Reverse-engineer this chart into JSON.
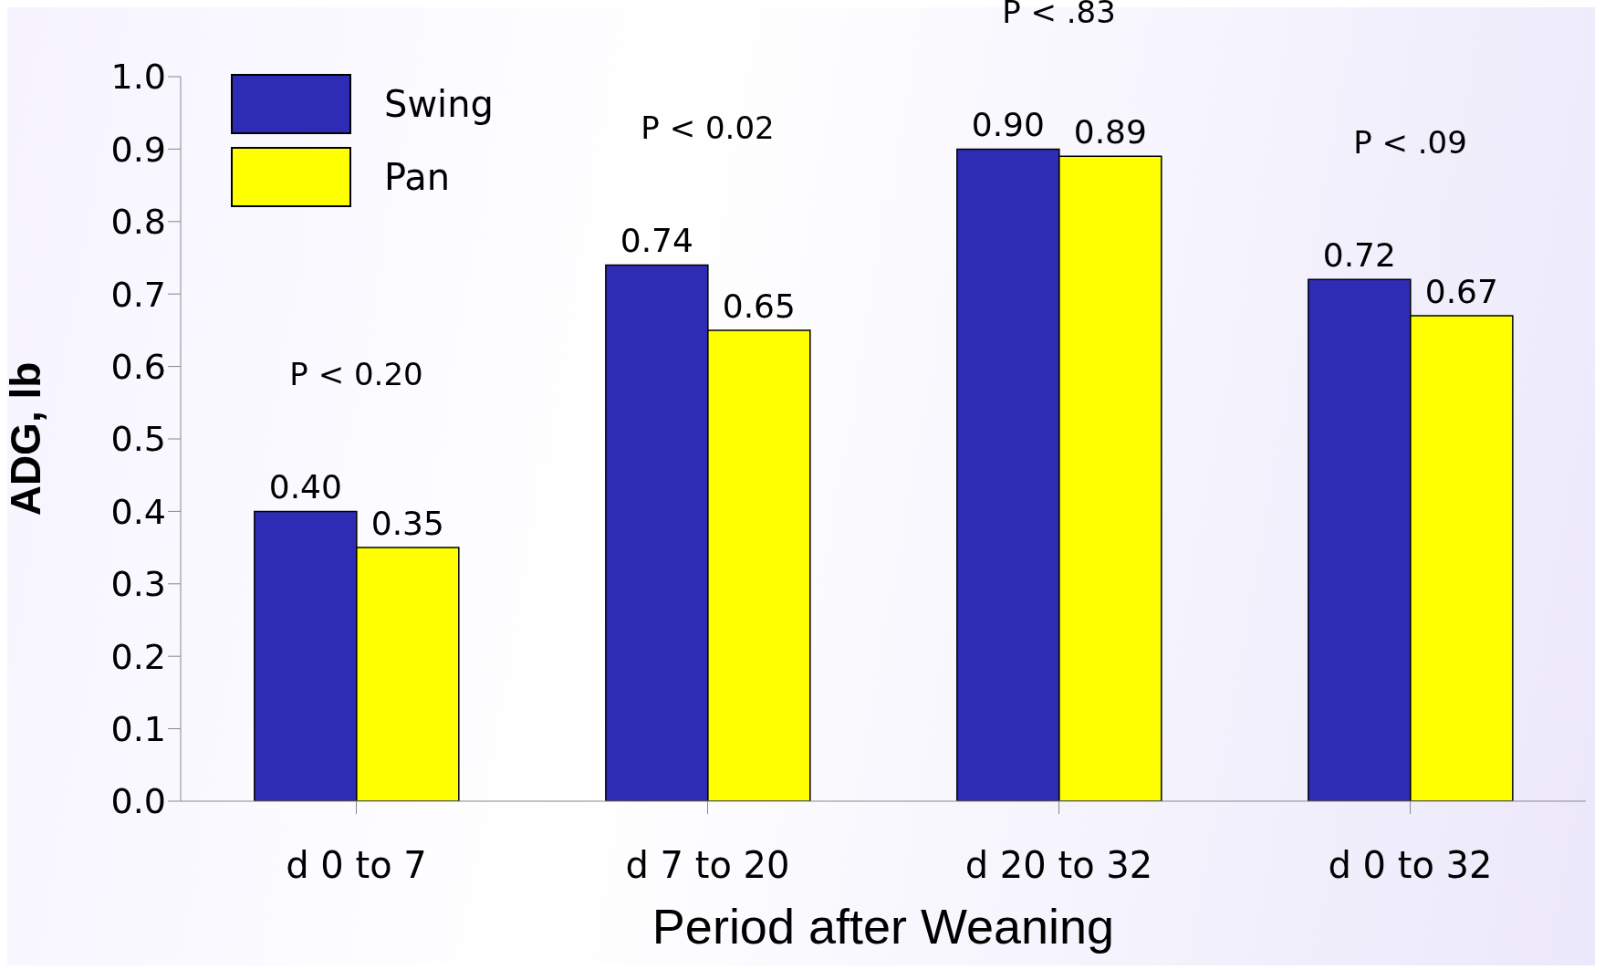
{
  "chart_data": {
    "type": "bar",
    "xlabel": "Period after Weaning",
    "ylabel": "ADG, lb",
    "categories": [
      "d 0 to 7",
      "d 7 to 20",
      "d 20 to 32",
      "d 0 to 32"
    ],
    "series": [
      {
        "name": "Swing",
        "color": "#2e2bb5",
        "values": [
          0.4,
          0.74,
          0.9,
          0.72
        ],
        "value_labels": [
          "0.40",
          "0.74",
          "0.90",
          "0.72"
        ]
      },
      {
        "name": "Pan",
        "color": "#ffff00",
        "values": [
          0.35,
          0.65,
          0.89,
          0.67
        ],
        "value_labels": [
          "0.35",
          "0.65",
          "0.89",
          "0.67"
        ]
      }
    ],
    "ylim": [
      0,
      1.0
    ],
    "yticks": [
      {
        "value": 0,
        "label": "0.0"
      },
      {
        "value": 0.1,
        "label": "0.1"
      },
      {
        "value": 0.2,
        "label": "0.2"
      },
      {
        "value": 0.3,
        "label": "0.3"
      },
      {
        "value": 0.4,
        "label": "0.4"
      },
      {
        "value": 0.5,
        "label": "0.5"
      },
      {
        "value": 0.6,
        "label": "0.6"
      },
      {
        "value": 0.7,
        "label": "0.7"
      },
      {
        "value": 0.8,
        "label": "0.8"
      },
      {
        "value": 0.9,
        "label": "0.9"
      },
      {
        "value": 1.0,
        "label": "1.0"
      }
    ],
    "legend": "top left",
    "annotations": [
      "P < 0.20",
      "P < 0.02",
      "P < .83",
      "P < .09"
    ]
  }
}
